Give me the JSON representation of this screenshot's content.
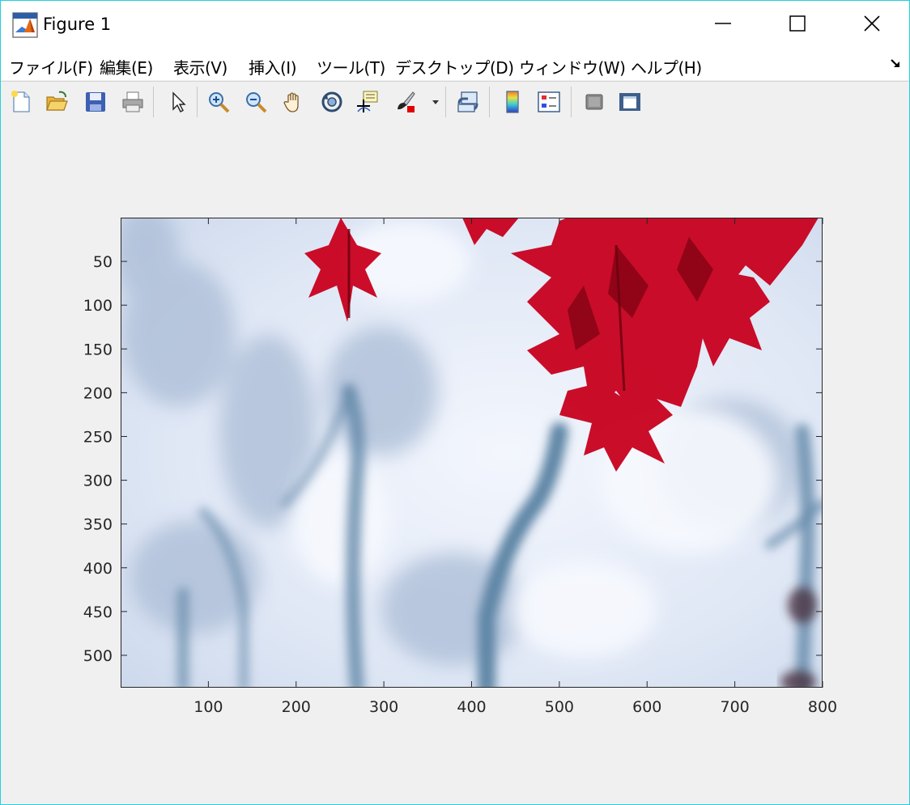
{
  "window": {
    "title": "Figure 1",
    "icon": "matlab-logo-icon"
  },
  "menu": {
    "items": [
      "ファイル(F)",
      "編集(E)",
      "表示(V)",
      "挿入(I)",
      "ツール(T)",
      "デスクトップ(D)",
      "ウィンドウ(W)",
      "ヘルプ(H)"
    ]
  },
  "toolbar": {
    "buttons": [
      "new-figure-icon",
      "open-file-icon",
      "save-icon",
      "print-icon",
      "edit-plot-arrow-icon",
      "zoom-in-icon",
      "zoom-out-icon",
      "pan-hand-icon",
      "rotate-3d-icon",
      "data-cursor-icon",
      "brush-icon",
      "brush-dropdown-icon",
      "link-plot-icon",
      "colorbar-icon",
      "legend-icon",
      "hide-plot-tools-icon",
      "show-plot-tools-icon"
    ]
  },
  "colors": {
    "window_border": "#1fd0e0",
    "leaf_red": "#c8001e",
    "snow_light": "#e8eefa",
    "branch_blue": "#5f86a6"
  },
  "chart_data": {
    "type": "image",
    "description_of_image": "",
    "xlim": [
      0,
      800
    ],
    "ylim": [
      0,
      537
    ],
    "y_reversed": true,
    "x_ticks": [
      "100",
      "200",
      "300",
      "400",
      "500",
      "600",
      "700",
      "800"
    ],
    "y_ticks": [
      "50",
      "100",
      "150",
      "200",
      "250",
      "300",
      "350",
      "400",
      "450",
      "500"
    ],
    "grid": false
  }
}
